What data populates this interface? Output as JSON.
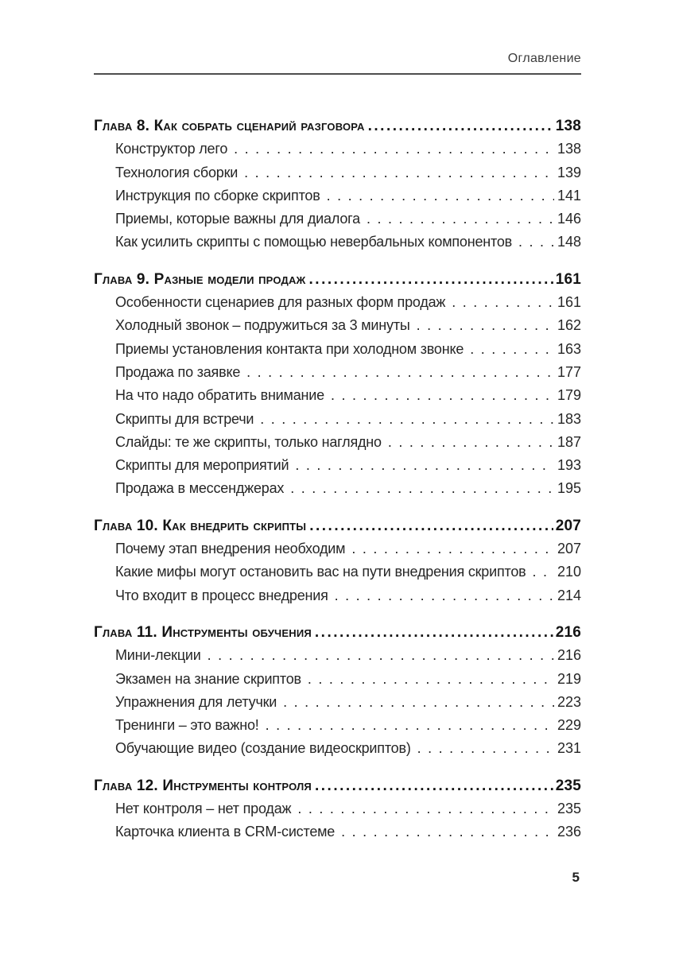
{
  "header": {
    "label": "Оглавление"
  },
  "footer": {
    "page_number": "5"
  },
  "toc": {
    "chapters": [
      {
        "title": "Глава 8. Как собрать сценарий разговора",
        "page": "138",
        "items": [
          {
            "title": "Конструктор лего",
            "page": "138"
          },
          {
            "title": "Технология сборки",
            "page": "139"
          },
          {
            "title": "Инструкция по сборке скриптов",
            "page": "141"
          },
          {
            "title": "Приемы, которые важны для диалога",
            "page": "146"
          },
          {
            "title": "Как усилить скрипты с помощью невербальных компонентов",
            "page": "148"
          }
        ]
      },
      {
        "title": "Глава 9. Разные модели продаж",
        "page": "161",
        "items": [
          {
            "title": "Особенности сценариев для разных форм продаж",
            "page": "161"
          },
          {
            "title": "Холодный звонок – подружиться за 3 минуты",
            "page": "162"
          },
          {
            "title": "Приемы установления контакта при холодном звонке",
            "page": "163"
          },
          {
            "title": "Продажа по заявке",
            "page": "177"
          },
          {
            "title": "На что надо обратить внимание",
            "page": "179"
          },
          {
            "title": "Скрипты для встречи",
            "page": "183"
          },
          {
            "title": "Слайды: те же скрипты, только наглядно",
            "page": "187"
          },
          {
            "title": "Скрипты для мероприятий",
            "page": "193"
          },
          {
            "title": "Продажа в мессенджерах",
            "page": "195"
          }
        ]
      },
      {
        "title": "Глава 10. Как внедрить скрипты",
        "page": "207",
        "items": [
          {
            "title": "Почему этап внедрения необходим",
            "page": "207"
          },
          {
            "title": "Какие мифы могут остановить вас на пути внедрения скриптов",
            "page": "210"
          },
          {
            "title": "Что входит в процесс внедрения",
            "page": "214"
          }
        ]
      },
      {
        "title": "Глава 11. Инструменты обучения",
        "page": "216",
        "items": [
          {
            "title": "Мини-лекции",
            "page": "216"
          },
          {
            "title": "Экзамен на знание скриптов",
            "page": "219"
          },
          {
            "title": "Упражнения для летучки",
            "page": "223"
          },
          {
            "title": "Тренинги – это важно!",
            "page": "229"
          },
          {
            "title": "Обучающие видео (создание видеоскриптов)",
            "page": "231"
          }
        ]
      },
      {
        "title": "Глава 12. Инструменты контроля",
        "page": "235",
        "items": [
          {
            "title": "Нет контроля – нет продаж",
            "page": "235"
          },
          {
            "title": "Карточка клиента в CRM-системе",
            "page": "236"
          }
        ]
      }
    ]
  }
}
